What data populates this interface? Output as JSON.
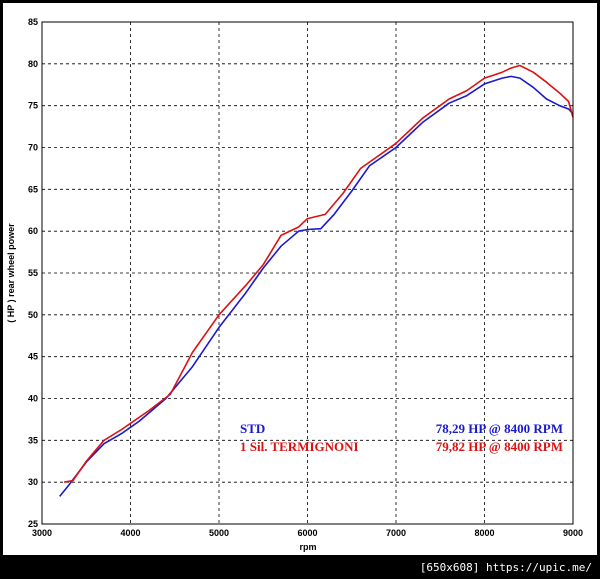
{
  "footer": {
    "text": "[650x608] https://upic.me/"
  },
  "chart_data": {
    "type": "line",
    "title": "",
    "xlabel": "rpm",
    "ylabel": "( HP )   rear wheel power",
    "xlim": [
      3000,
      9000
    ],
    "ylim": [
      25,
      85
    ],
    "x_ticks": [
      3000,
      4000,
      5000,
      6000,
      7000,
      8000,
      9000
    ],
    "y_ticks": [
      25,
      30,
      35,
      40,
      45,
      50,
      55,
      60,
      65,
      70,
      75,
      80,
      85
    ],
    "grid": true,
    "legend": "bottom-right",
    "series": [
      {
        "name": "STD",
        "color": "#1a1acc",
        "annotation": "78,29 HP @ 8400 RPM",
        "points": [
          [
            3200,
            28.3
          ],
          [
            3300,
            29.6
          ],
          [
            3500,
            32.4
          ],
          [
            3700,
            34.6
          ],
          [
            3900,
            35.8
          ],
          [
            4100,
            37.3
          ],
          [
            4400,
            40.0
          ],
          [
            4700,
            43.8
          ],
          [
            5000,
            48.5
          ],
          [
            5300,
            52.6
          ],
          [
            5500,
            55.6
          ],
          [
            5700,
            58.2
          ],
          [
            5900,
            60.0
          ],
          [
            6000,
            60.2
          ],
          [
            6150,
            60.3
          ],
          [
            6300,
            62.0
          ],
          [
            6500,
            64.8
          ],
          [
            6700,
            67.8
          ],
          [
            7000,
            70.0
          ],
          [
            7300,
            73.0
          ],
          [
            7600,
            75.3
          ],
          [
            7800,
            76.2
          ],
          [
            8000,
            77.6
          ],
          [
            8200,
            78.3
          ],
          [
            8300,
            78.5
          ],
          [
            8400,
            78.3
          ],
          [
            8550,
            77.2
          ],
          [
            8700,
            75.8
          ],
          [
            8850,
            75.0
          ],
          [
            8950,
            74.6
          ],
          [
            9000,
            74.0
          ]
        ]
      },
      {
        "name": "1 Sil. TERMIGNONI",
        "color": "#dd1111",
        "annotation": "79,82 HP @ 8400 RPM",
        "points": [
          [
            3250,
            30.0
          ],
          [
            3350,
            30.2
          ],
          [
            3500,
            32.5
          ],
          [
            3700,
            35.0
          ],
          [
            3900,
            36.3
          ],
          [
            4200,
            38.5
          ],
          [
            4450,
            40.5
          ],
          [
            4700,
            45.5
          ],
          [
            5000,
            50.0
          ],
          [
            5300,
            53.5
          ],
          [
            5500,
            56.0
          ],
          [
            5700,
            59.5
          ],
          [
            5900,
            60.5
          ],
          [
            6000,
            61.5
          ],
          [
            6200,
            62.0
          ],
          [
            6400,
            64.5
          ],
          [
            6600,
            67.5
          ],
          [
            6800,
            69.0
          ],
          [
            7000,
            70.5
          ],
          [
            7300,
            73.5
          ],
          [
            7600,
            75.8
          ],
          [
            7800,
            76.8
          ],
          [
            8000,
            78.3
          ],
          [
            8200,
            79.0
          ],
          [
            8300,
            79.5
          ],
          [
            8400,
            79.8
          ],
          [
            8550,
            79.0
          ],
          [
            8700,
            77.8
          ],
          [
            8850,
            76.5
          ],
          [
            8950,
            75.5
          ],
          [
            9000,
            73.6
          ]
        ]
      }
    ]
  }
}
